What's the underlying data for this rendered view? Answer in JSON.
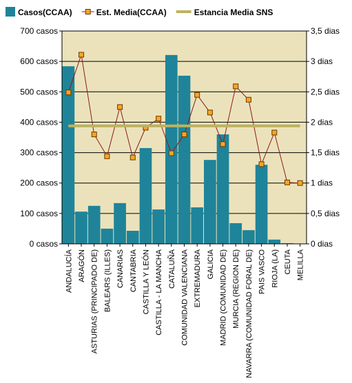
{
  "chart_data": {
    "type": "bar",
    "categories": [
      "ANDALUCÍA",
      "ARAGÓN",
      "ASTURIAS (PRINCIPADO DE)",
      "BALEARS (ILLES)",
      "CANARIAS",
      "CANTABRIA",
      "CASTILLA Y LEÓN",
      "CASTILLA - LA MANCHA",
      "CATALUÑA",
      "COMUNIDAD VALENCIANA",
      "EXTREMADURA",
      "GALICIA",
      "MADRID (COMUNIDAD DE)",
      "MURCIA (REGION DE)",
      "NAVARRA (COMUNIDAD FORAL DE)",
      "PAIS VASCO",
      "RIOJA (LA)",
      "CEUTA",
      "MELILLA"
    ],
    "series": [
      {
        "name": "Casos(CCAA)",
        "type": "bar",
        "color": "#1f8499",
        "values": [
          584,
          106,
          125,
          50,
          134,
          43,
          315,
          113,
          621,
          553,
          120,
          276,
          360,
          68,
          45,
          260,
          14,
          2,
          1
        ]
      },
      {
        "name": "Est. Media(CCAA)",
        "type": "line",
        "axis": "y2",
        "color": "#8b1a1a",
        "marker_color": "#f5a623",
        "values": [
          2.49,
          3.11,
          1.8,
          1.44,
          2.25,
          1.42,
          1.91,
          2.06,
          1.49,
          1.8,
          2.45,
          2.16,
          1.64,
          2.59,
          2.37,
          1.31,
          1.83,
          1.01,
          1.0
        ]
      },
      {
        "name": "Estancia Media SNS",
        "type": "line",
        "axis": "y2",
        "color": "#bdb35c",
        "values": [
          1.94,
          1.94,
          1.94,
          1.94,
          1.94,
          1.94,
          1.94,
          1.94,
          1.94,
          1.94,
          1.94,
          1.94,
          1.94,
          1.94,
          1.94,
          1.94,
          1.94,
          1.94,
          1.94
        ]
      }
    ],
    "ylim": [
      0,
      700
    ],
    "yticks": [
      {
        "value": 0,
        "label": "0 casos"
      },
      {
        "value": 100,
        "label": "100 casos"
      },
      {
        "value": 200,
        "label": "200 casos"
      },
      {
        "value": 300,
        "label": "300 casos"
      },
      {
        "value": 400,
        "label": "400 casos"
      },
      {
        "value": 500,
        "label": "500 casos"
      },
      {
        "value": 600,
        "label": "600 casos"
      },
      {
        "value": 700,
        "label": "700 casos"
      }
    ],
    "y2lim": [
      0,
      3.5
    ],
    "y2ticks": [
      {
        "value": 0,
        "label": "0 dias"
      },
      {
        "value": 0.5,
        "label": "0,5 dias"
      },
      {
        "value": 1,
        "label": "1 dias"
      },
      {
        "value": 1.5,
        "label": "1,5 dias"
      },
      {
        "value": 2,
        "label": "2 dias"
      },
      {
        "value": 2.5,
        "label": "2,5 dias"
      },
      {
        "value": 3,
        "label": "3 dias"
      },
      {
        "value": 3.5,
        "label": "3,5 dias"
      }
    ],
    "grid": true,
    "background": "#ebe2bb",
    "legend": "top"
  }
}
